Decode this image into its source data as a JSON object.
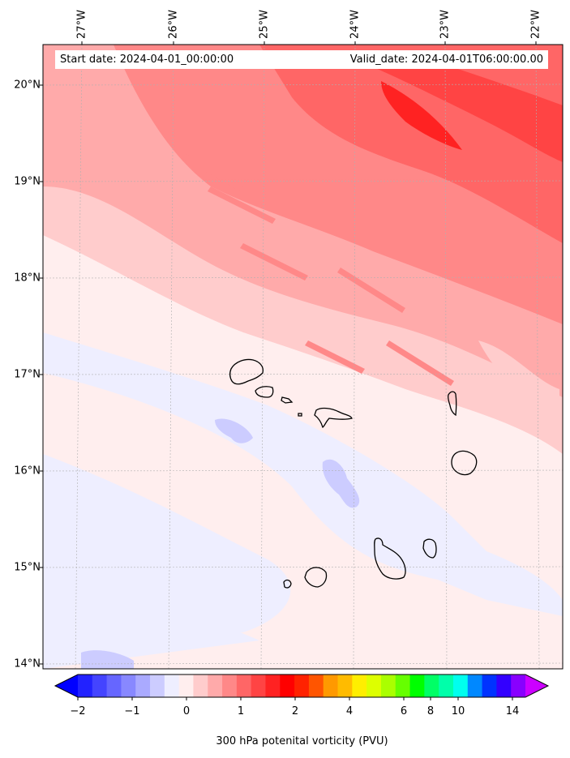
{
  "map": {
    "start_label": "Start date: 2024-04-01_00:00:00",
    "valid_label": "Valid_date: 2024-04-01T06:00:00.00",
    "lon_labels": [
      "27°W",
      "26°W",
      "25°W",
      "24°W",
      "23°W",
      "22°W"
    ],
    "lat_labels": [
      "20°N",
      "19°N",
      "18°N",
      "17°N",
      "16°N",
      "15°N",
      "14°N"
    ],
    "lon_range_deg_east": [
      -27.4,
      -21.8
    ],
    "lat_range_deg_north": [
      13.95,
      20.4
    ],
    "gridlines": true,
    "coastline_color": "#000000",
    "field": "300 hPa potential vorticity (PVU)",
    "islands": [
      "Santo Antão",
      "São Vicente",
      "Santa Luzia",
      "São Nicolau",
      "Sal",
      "Boa Vista",
      "Maio",
      "Santiago",
      "Fogo",
      "Brava"
    ]
  },
  "colorbar": {
    "label": "300 hPa potenital vorticity (PVU)",
    "tick_labels": [
      "−2",
      "−1",
      "0",
      "1",
      "2",
      "4",
      "6",
      "8",
      "10",
      "14"
    ],
    "colors": [
      "#0000ff",
      "#2222ff",
      "#4444ff",
      "#6666ff",
      "#8888ff",
      "#aaaaff",
      "#ccccff",
      "#eeeeff",
      "#ffeeee",
      "#ffcccc",
      "#ffaaaa",
      "#ff8888",
      "#ff6666",
      "#ff4444",
      "#ff2222",
      "#ff0000",
      "#ff2200",
      "#ff5500",
      "#ff9900",
      "#ffbb00",
      "#ffee00",
      "#ddff00",
      "#aaff00",
      "#66ff00",
      "#00ff00",
      "#00ff66",
      "#00ffaa",
      "#00ffee",
      "#0088ff",
      "#0033ff",
      "#3300ff",
      "#8800ff",
      "#cc00ff"
    ],
    "extend": "both"
  }
}
